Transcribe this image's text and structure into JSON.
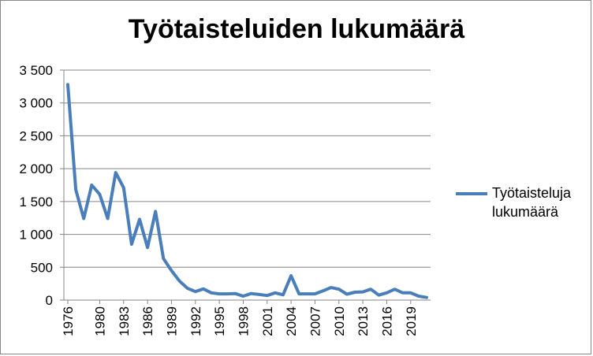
{
  "chart_data": {
    "type": "line",
    "title": "Työtaisteluiden lukumäärä",
    "xlabel": "",
    "ylabel": "",
    "ylim": [
      0,
      3500
    ],
    "y_ticks": [
      0,
      500,
      1000,
      1500,
      2000,
      2500,
      3000,
      3500
    ],
    "y_tick_labels": [
      "0",
      "500",
      "1 000",
      "1 500",
      "2 000",
      "2 500",
      "3 000",
      "3 500"
    ],
    "x_tick_labels": [
      "1976",
      "1980",
      "1983",
      "1986",
      "1989",
      "1992",
      "1995",
      "1998",
      "2001",
      "2004",
      "2007",
      "2010",
      "2013",
      "2016",
      "2019"
    ],
    "x_range": [
      1976,
      2021
    ],
    "grid": "horizontal",
    "legend_position": "right",
    "series": [
      {
        "name": "Työtaisteluja lukumäärä",
        "color": "#4a7ebb",
        "x": [
          1976,
          1977,
          1978,
          1979,
          1980,
          1981,
          1982,
          1983,
          1984,
          1985,
          1986,
          1987,
          1988,
          1989,
          1990,
          1991,
          1992,
          1993,
          1994,
          1995,
          1996,
          1997,
          1998,
          1999,
          2000,
          2001,
          2002,
          2003,
          2004,
          2005,
          2006,
          2007,
          2008,
          2009,
          2010,
          2011,
          2012,
          2013,
          2014,
          2015,
          2016,
          2017,
          2018,
          2019,
          2020,
          2021
        ],
        "values": [
          3280,
          1680,
          1240,
          1750,
          1610,
          1240,
          1940,
          1710,
          850,
          1230,
          800,
          1350,
          630,
          450,
          290,
          180,
          130,
          170,
          110,
          95,
          95,
          100,
          60,
          100,
          85,
          70,
          110,
          80,
          370,
          95,
          95,
          95,
          140,
          190,
          165,
          90,
          120,
          125,
          165,
          75,
          110,
          165,
          110,
          110,
          60,
          40
        ]
      }
    ]
  }
}
